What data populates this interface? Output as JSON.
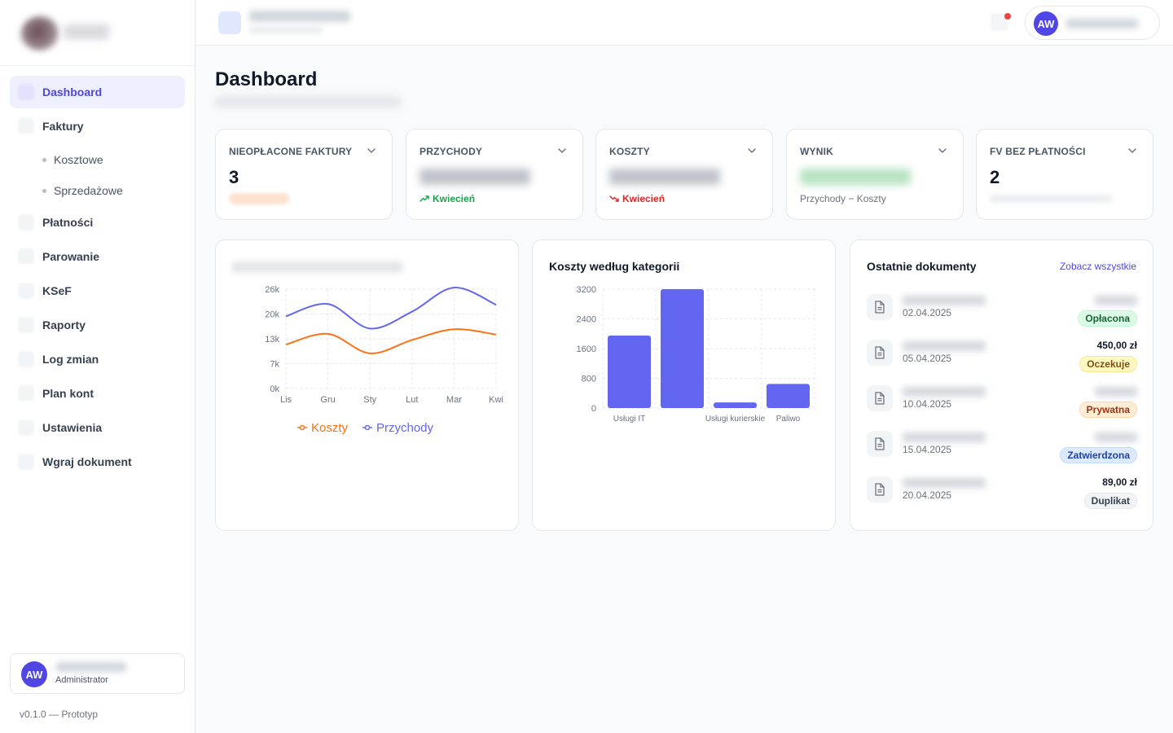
{
  "sidebar": {
    "items": [
      {
        "label": "Dashboard",
        "active": true
      },
      {
        "label": "Faktury"
      },
      {
        "label": "Płatności"
      },
      {
        "label": "Parowanie"
      },
      {
        "label": "KSeF"
      },
      {
        "label": "Raporty"
      },
      {
        "label": "Log zmian"
      },
      {
        "label": "Plan kont"
      },
      {
        "label": "Ustawienia"
      },
      {
        "label": "Wgraj dokument"
      }
    ],
    "subitems": [
      {
        "label": "Kosztowe"
      },
      {
        "label": "Sprzedażowe"
      }
    ],
    "user": {
      "initials": "AW",
      "role": "Administrator"
    },
    "version": "v0.1.0 — Prototyp"
  },
  "topbar": {
    "user_initials": "AW",
    "notification_dot_color": "#ef4444"
  },
  "page": {
    "title": "Dashboard"
  },
  "stats": [
    {
      "label": "NIEOPŁACONE FAKTURY",
      "value": "3"
    },
    {
      "label": "PRZYCHODY",
      "trend": "Kwiecień",
      "trend_direction": "up",
      "trend_color": "#16a34a"
    },
    {
      "label": "KOSZTY",
      "trend": "Kwiecień",
      "trend_direction": "down",
      "trend_color": "#dc2626"
    },
    {
      "label": "WYNIK",
      "note": "Przychody − Koszty"
    },
    {
      "label": "FV BEZ PŁATNOŚCI",
      "value": "2"
    }
  ],
  "line_panel": {
    "legend": [
      {
        "label": "Koszty",
        "color": "#f97316"
      },
      {
        "label": "Przychody",
        "color": "#6366f1"
      }
    ]
  },
  "bar_panel": {
    "title": "Koszty według kategorii"
  },
  "docs_panel": {
    "title": "Ostatnie dokumenty",
    "see_all": "Zobacz wszystkie",
    "items": [
      {
        "date": "02.04.2025",
        "amount": "",
        "status": "Opłacona",
        "status_color": "green"
      },
      {
        "date": "05.04.2025",
        "amount": "450,00 zł",
        "status": "Oczekuje",
        "status_color": "yellow"
      },
      {
        "date": "10.04.2025",
        "amount": "",
        "status": "Prywatna",
        "status_color": "orange"
      },
      {
        "date": "15.04.2025",
        "amount": "",
        "status": "Zatwierdzona",
        "status_color": "blue"
      },
      {
        "date": "20.04.2025",
        "amount": "89,00 zł",
        "status": "Duplikat",
        "status_color": "gray"
      }
    ]
  },
  "chart_data": [
    {
      "type": "line",
      "x": [
        "Lis",
        "Gru",
        "Sty",
        "Lut",
        "Mar",
        "Kwi"
      ],
      "y_ticks": [
        "0k",
        "7k",
        "13k",
        "20k",
        "26k"
      ],
      "ylim": [
        0,
        26000
      ],
      "grid": true,
      "legend_position": "bottom",
      "series": [
        {
          "name": "Koszty",
          "color": "#f97316",
          "values": [
            11500,
            14300,
            9200,
            12700,
            15500,
            14100
          ]
        },
        {
          "name": "Przychody",
          "color": "#6366f1",
          "values": [
            18900,
            22100,
            15700,
            20100,
            26400,
            21900
          ]
        }
      ]
    },
    {
      "type": "bar",
      "categories": [
        "Usługi IT",
        "",
        "Usługi kurierskie",
        "Paliwo"
      ],
      "values": [
        1950,
        3200,
        150,
        650
      ],
      "y_ticks": [
        "0",
        "800",
        "1600",
        "2400",
        "3200"
      ],
      "ylim": [
        0,
        3200
      ],
      "grid": true,
      "color": "#6366f1"
    }
  ]
}
